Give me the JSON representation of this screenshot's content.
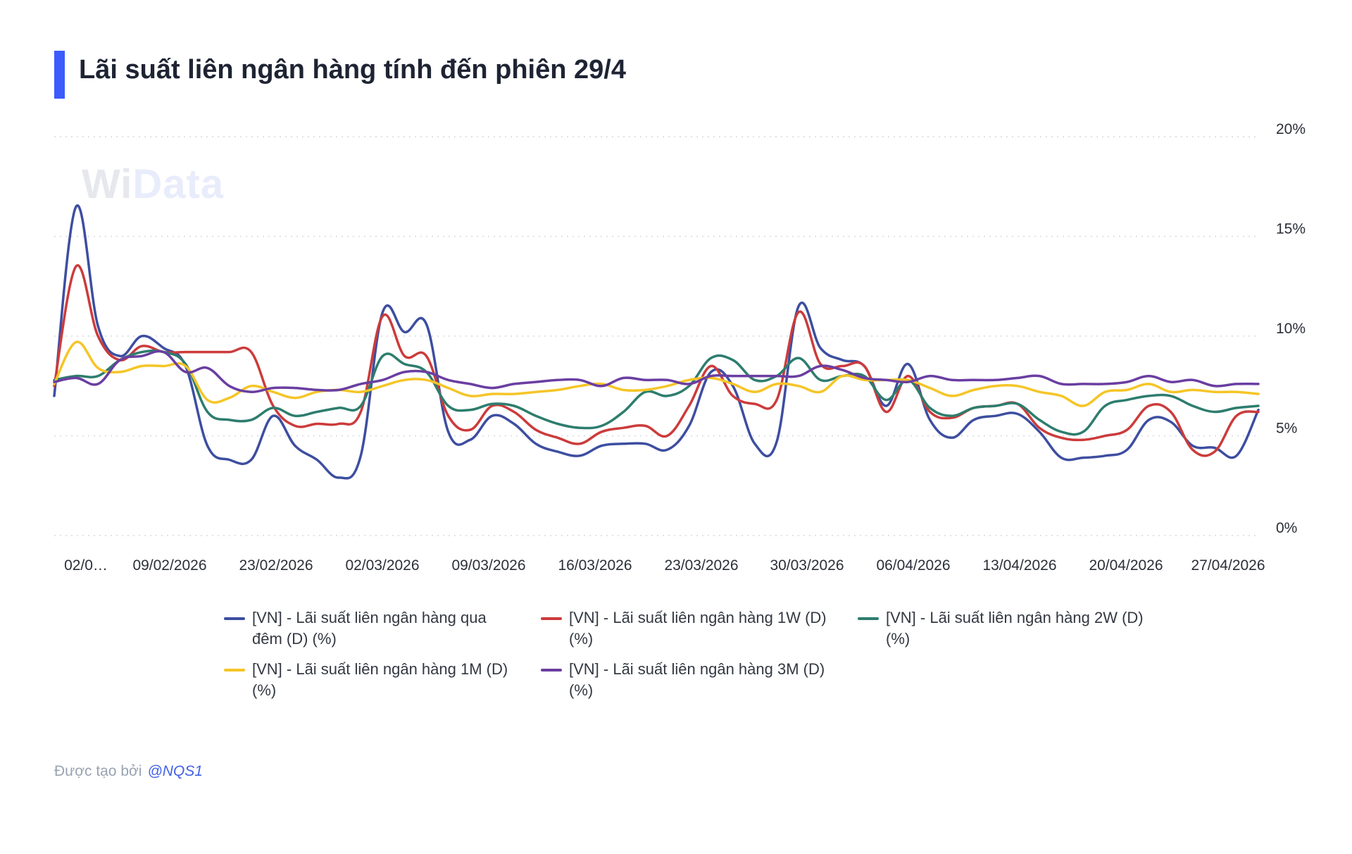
{
  "header": {
    "title": "Lãi suất liên ngân hàng tính đến phiên 29/4"
  },
  "watermark": {
    "part1": "Wi",
    "part2": "Data"
  },
  "footer": {
    "created_by": "Được tạo bởi",
    "handle": "@NQS1"
  },
  "chart_data": {
    "type": "line",
    "title": "Lãi suất liên ngân hàng tính đến phiên 29/4",
    "xlabel": "",
    "ylabel": "",
    "ylim": [
      0,
      20
    ],
    "y_ticks": [
      "0%",
      "5%",
      "10%",
      "15%",
      "20%"
    ],
    "x_ticks": [
      "02/0…",
      "09/02/2026",
      "23/02/2026",
      "02/03/2026",
      "09/03/2026",
      "16/03/2026",
      "23/03/2026",
      "30/03/2026",
      "06/04/2026",
      "13/04/2026",
      "20/04/2026",
      "27/04/2026"
    ],
    "grid": "dotted horizontal",
    "legend_position": "bottom",
    "series": [
      {
        "name": "[VN] - Lãi suất liên ngân hàng qua đêm (D) (%)",
        "color": "#3d4ea0",
        "values": [
          7.0,
          16.5,
          10.5,
          9.0,
          10.0,
          9.4,
          8.5,
          4.5,
          3.8,
          3.8,
          6.0,
          4.5,
          3.8,
          2.9,
          4.0,
          11.2,
          10.2,
          10.6,
          5.2,
          4.8,
          6.0,
          5.6,
          4.6,
          4.2,
          4.0,
          4.5,
          4.6,
          4.6,
          4.3,
          5.5,
          8.2,
          7.5,
          4.6,
          4.7,
          11.5,
          9.4,
          8.8,
          8.5,
          6.5,
          8.6,
          5.8,
          4.9,
          5.8,
          6.0,
          6.1,
          5.2,
          3.9,
          3.9,
          4.0,
          4.3,
          5.8,
          5.7,
          4.5,
          4.4,
          4.0,
          6.3
        ]
      },
      {
        "name": "[VN] - Lãi suất liên ngân hàng 1W (D) (%)",
        "color": "#cc3b3b",
        "values": [
          7.5,
          13.5,
          10.0,
          8.8,
          9.5,
          9.2,
          9.2,
          9.2,
          9.2,
          9.2,
          6.5,
          5.5,
          5.6,
          5.6,
          6.2,
          11.0,
          9.0,
          9.0,
          6.0,
          5.3,
          6.5,
          6.2,
          5.3,
          4.9,
          4.6,
          5.2,
          5.4,
          5.5,
          5.0,
          6.5,
          8.5,
          7.0,
          6.6,
          6.8,
          11.2,
          8.6,
          8.5,
          8.5,
          6.2,
          8.0,
          6.2,
          5.9,
          6.4,
          6.5,
          6.6,
          5.4,
          4.9,
          4.8,
          5.0,
          5.3,
          6.5,
          6.2,
          4.3,
          4.2,
          6.0,
          6.2
        ]
      },
      {
        "name": "[VN] - Lãi suất liên ngân hàng 2W (D) (%)",
        "color": "#2d7d6e",
        "values": [
          7.8,
          8.0,
          8.0,
          8.8,
          9.2,
          9.2,
          8.6,
          6.2,
          5.8,
          5.8,
          6.4,
          6.0,
          6.2,
          6.4,
          6.5,
          9.0,
          8.6,
          8.2,
          6.5,
          6.3,
          6.6,
          6.5,
          6.0,
          5.6,
          5.4,
          5.5,
          6.2,
          7.2,
          7.0,
          7.5,
          8.9,
          8.8,
          7.8,
          8.0,
          8.9,
          7.8,
          8.0,
          8.0,
          6.8,
          7.8,
          6.4,
          6.0,
          6.4,
          6.5,
          6.6,
          5.8,
          5.2,
          5.2,
          6.5,
          6.8,
          7.0,
          7.0,
          6.5,
          6.2,
          6.4,
          6.5
        ]
      },
      {
        "name": "[VN] - Lãi suất liên ngân hàng 1M (D) (%)",
        "color": "#f5c527",
        "values": [
          7.6,
          9.7,
          8.4,
          8.2,
          8.5,
          8.5,
          8.5,
          6.8,
          6.9,
          7.5,
          7.2,
          6.9,
          7.2,
          7.3,
          7.2,
          7.5,
          7.8,
          7.8,
          7.4,
          7.0,
          7.1,
          7.1,
          7.2,
          7.3,
          7.5,
          7.6,
          7.3,
          7.3,
          7.5,
          7.8,
          7.9,
          7.6,
          7.2,
          7.6,
          7.5,
          7.2,
          8.0,
          7.8,
          7.8,
          7.8,
          7.4,
          7.0,
          7.3,
          7.5,
          7.5,
          7.2,
          7.0,
          6.5,
          7.2,
          7.3,
          7.6,
          7.2,
          7.3,
          7.2,
          7.2,
          7.1
        ]
      },
      {
        "name": "[VN] - Lãi suất liên ngân hàng 3M (D) (%)",
        "color": "#6a3ea1",
        "values": [
          7.7,
          7.9,
          7.6,
          8.8,
          9.0,
          9.2,
          8.2,
          8.4,
          7.5,
          7.2,
          7.4,
          7.4,
          7.3,
          7.3,
          7.6,
          7.8,
          8.2,
          8.2,
          7.8,
          7.6,
          7.4,
          7.6,
          7.7,
          7.8,
          7.8,
          7.5,
          7.9,
          7.8,
          7.8,
          7.6,
          8.0,
          8.0,
          8.0,
          8.0,
          8.0,
          8.5,
          8.3,
          7.9,
          7.8,
          7.7,
          8.0,
          7.8,
          7.8,
          7.8,
          7.9,
          8.0,
          7.6,
          7.6,
          7.6,
          7.7,
          8.0,
          7.7,
          7.8,
          7.5,
          7.6,
          7.6
        ]
      }
    ]
  }
}
